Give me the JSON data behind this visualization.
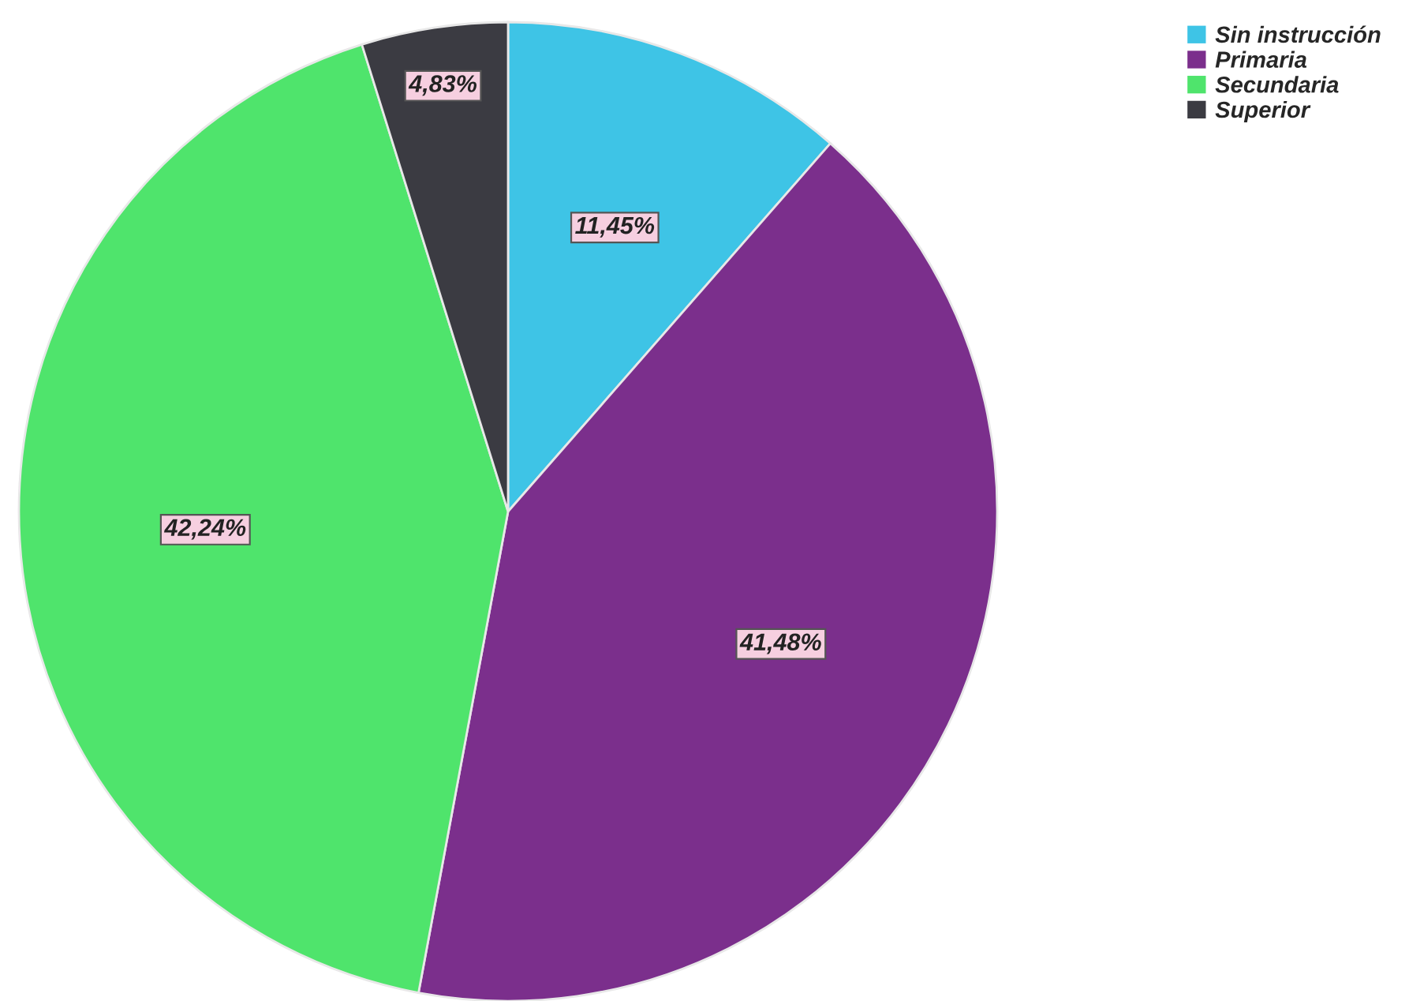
{
  "chart_data": {
    "type": "pie",
    "categories": [
      "Sin instrucción",
      "Primaria",
      "Secundaria",
      "Superior"
    ],
    "values": [
      11.45,
      41.48,
      42.24,
      4.83
    ],
    "value_labels": [
      "11,45%",
      "41,48%",
      "42,24%",
      "4,83%"
    ],
    "colors": [
      "#3ec4e6",
      "#7b2f8c",
      "#4fe46c",
      "#3b3b42"
    ],
    "legend": "top right"
  }
}
